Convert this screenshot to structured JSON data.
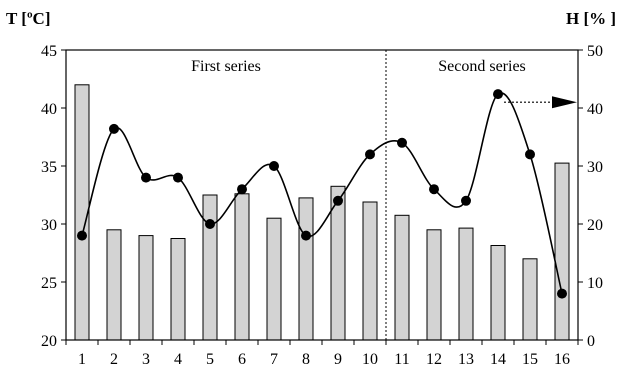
{
  "chart_data": {
    "type": "bar+line",
    "left_axis_title": "T [ºC]",
    "right_axis_title": "H [% ]",
    "categories": [
      "1",
      "2",
      "3",
      "4",
      "5",
      "6",
      "7",
      "8",
      "9",
      "10",
      "11",
      "12",
      "13",
      "14",
      "15",
      "16"
    ],
    "bar_series": {
      "axis": "right",
      "color": "#d3d3d3",
      "values": [
        44,
        19,
        18,
        17.5,
        25,
        25.2,
        21,
        24.5,
        26.5,
        23.8,
        21.5,
        19,
        19.3,
        16.3,
        14,
        30.5
      ]
    },
    "line_series": {
      "axis": "left",
      "color": "#000000",
      "values": [
        29,
        38.2,
        34,
        34,
        30,
        33,
        35,
        29,
        32,
        36,
        37,
        33,
        32,
        41.2,
        36,
        24
      ]
    },
    "y_left": {
      "min": 20,
      "max": 45,
      "ticks": [
        20,
        25,
        30,
        35,
        40,
        45
      ]
    },
    "y_right": {
      "min": 0,
      "max": 50,
      "ticks": [
        0,
        10,
        20,
        30,
        40,
        50
      ]
    },
    "annotations": {
      "first_series": "First series",
      "second_series": "Second series",
      "divider_between_categories": [
        10,
        11
      ],
      "arrow_from_category": 14,
      "arrow_axis_value": 41
    },
    "grid": false
  }
}
